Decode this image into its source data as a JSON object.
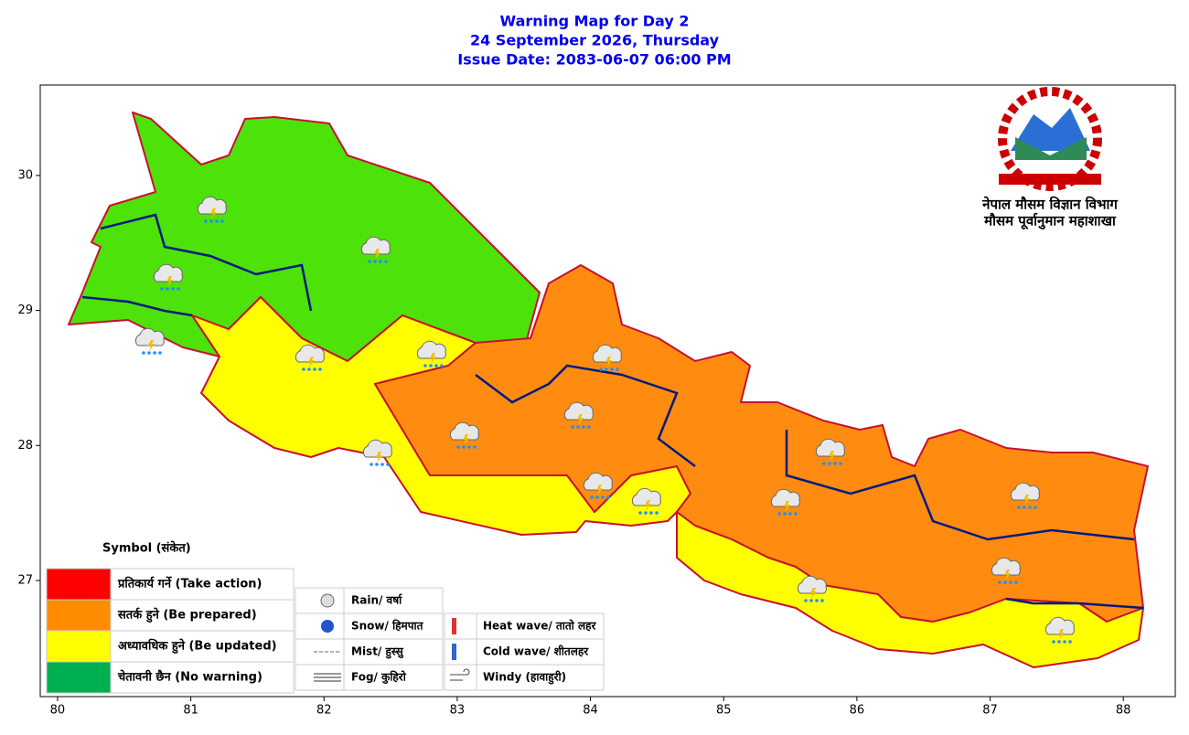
{
  "title": [
    "Warning Map for Day 2",
    "24 September 2026, Thursday",
    "Issue Date: 2083-06-07 06:00 PM"
  ],
  "map": {
    "xlim": [
      79.87,
      88.39
    ],
    "ylim": [
      26.14,
      30.67
    ],
    "xticks": [
      80,
      81,
      82,
      83,
      84,
      85,
      86,
      87,
      88
    ],
    "yticks": [
      27,
      28,
      29,
      30
    ]
  },
  "logo": {
    "line1": "नेपाल मौसम विज्ञान विभाग",
    "line2": "मौसम पूर्वानुमान महाशाखा"
  },
  "legend": {
    "title": "Symbol (संकेत)",
    "levels": [
      {
        "label": "प्रतिकार्य गर्ने (Take action)",
        "color": "#ff0000"
      },
      {
        "label": "सतर्क हुने (Be prepared)",
        "color": "#ff8c00"
      },
      {
        "label": "अध्यावधिक हुने (Be updated)",
        "color": "#ffff00"
      },
      {
        "label": "चेतावनी छैन (No warning)",
        "color": "#00b050"
      }
    ],
    "symbols": [
      "Rain/ वर्षा",
      "Snow/ हिमपात",
      "Mist/ हुस्सु",
      "Fog/ कुहिरो"
    ],
    "symbols2": [
      "Heat wave/ तातो लहर",
      "Cold wave/ शीतलहर",
      "Windy (हावाहुरी)"
    ]
  }
}
